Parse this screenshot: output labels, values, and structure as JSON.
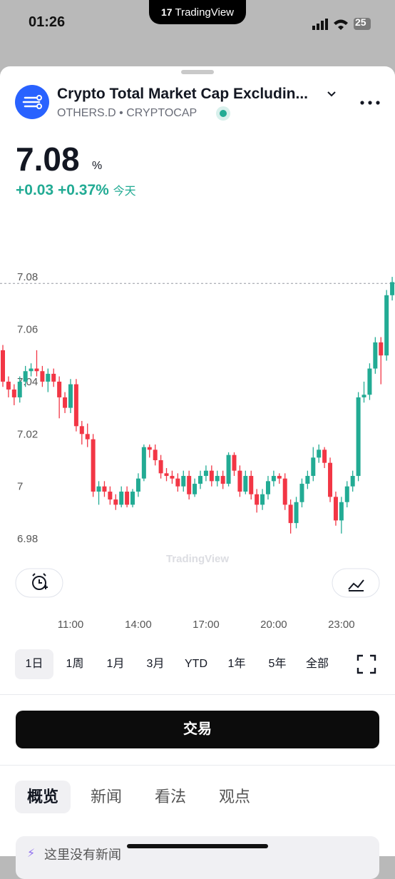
{
  "status_bar": {
    "time": "01:26",
    "battery": "25"
  },
  "app_badge": "TradingView",
  "symbol": {
    "name": "Crypto Total Market Cap Excludin...",
    "ticker": "OTHERS.D",
    "separator": "•",
    "exchange": "CRYPTOCAP"
  },
  "quote": {
    "price": "7.08",
    "unit": "%",
    "change": "+0.03",
    "change_percent": "+0.37%",
    "period": "今天"
  },
  "chart_data": {
    "type": "candlestick",
    "open": [
      7.052,
      7.04,
      7.037,
      7.034,
      7.04,
      7.044,
      7.045,
      7.044,
      7.04,
      7.043,
      7.04,
      7.034,
      7.03,
      7.039,
      7.023,
      7.02,
      7.018,
      6.998,
      7.0,
      6.998,
      6.995,
      6.993,
      6.998,
      6.993,
      6.998,
      7.003,
      7.015,
      7.014,
      7.01,
      7.005,
      7.004,
      7.003,
      7.0,
      7.004,
      6.997,
      7.001,
      7.004,
      7.006,
      7.002,
      7.004,
      7.001,
      7.012,
      7.006,
      6.998,
      7.004,
      6.997,
      6.993,
      6.997,
      7.002,
      7.004,
      7.003,
      6.993,
      6.986,
      6.994,
      7.001,
      7.004,
      7.011,
      7.014,
      7.009,
      6.996,
      6.987,
      6.994,
      7.0,
      7.004,
      7.034,
      7.035,
      7.045,
      7.055,
      7.05,
      7.073
    ],
    "high": [
      7.054,
      7.042,
      7.039,
      7.042,
      7.046,
      7.047,
      7.052,
      7.046,
      7.045,
      7.045,
      7.042,
      7.036,
      7.041,
      7.041,
      7.025,
      7.024,
      7.02,
      7.002,
      7.002,
      7.0,
      6.997,
      7.0,
      7.0,
      6.999,
      7.005,
      7.016,
      7.016,
      7.016,
      7.012,
      7.007,
      7.006,
      7.005,
      7.006,
      7.006,
      7.003,
      7.006,
      7.008,
      7.008,
      7.006,
      7.006,
      7.013,
      7.013,
      7.008,
      7.006,
      7.006,
      6.999,
      6.999,
      7.004,
      7.006,
      7.005,
      7.005,
      6.995,
      6.996,
      7.003,
      7.006,
      7.015,
      7.016,
      7.015,
      7.011,
      6.998,
      6.996,
      7.002,
      7.006,
      7.036,
      7.04,
      7.047,
      7.057,
      7.057,
      7.075,
      7.08
    ],
    "low": [
      7.038,
      7.034,
      7.031,
      7.032,
      7.038,
      7.042,
      7.042,
      7.038,
      7.036,
      7.038,
      7.026,
      7.028,
      7.028,
      7.021,
      7.016,
      7.015,
      6.996,
      6.993,
      6.996,
      6.993,
      6.991,
      6.992,
      6.992,
      6.992,
      6.996,
      7.002,
      7.011,
      7.008,
      7.003,
      7.002,
      7.001,
      6.998,
      6.998,
      6.995,
      6.996,
      6.999,
      7.002,
      7.0,
      7.0,
      6.999,
      7.0,
      7.004,
      6.996,
      6.997,
      6.995,
      6.99,
      6.991,
      6.995,
      7.0,
      7.001,
      6.991,
      6.982,
      6.984,
      6.992,
      6.999,
      7.002,
      7.009,
      7.007,
      6.994,
      6.985,
      6.982,
      6.992,
      6.998,
      7.002,
      7.032,
      7.033,
      7.043,
      7.039,
      7.048,
      7.071
    ],
    "close": [
      7.04,
      7.037,
      7.034,
      7.04,
      7.044,
      7.045,
      7.044,
      7.04,
      7.043,
      7.04,
      7.034,
      7.03,
      7.039,
      7.023,
      7.02,
      7.018,
      6.998,
      7.0,
      6.998,
      6.995,
      6.993,
      6.998,
      6.993,
      6.998,
      7.003,
      7.015,
      7.014,
      7.01,
      7.005,
      7.004,
      7.003,
      7.0,
      7.004,
      6.997,
      7.001,
      7.004,
      7.006,
      7.002,
      7.004,
      7.001,
      7.012,
      7.006,
      6.998,
      7.004,
      6.997,
      6.993,
      6.997,
      7.002,
      7.004,
      7.003,
      6.993,
      6.986,
      6.994,
      7.001,
      7.004,
      7.011,
      7.014,
      7.009,
      6.996,
      6.987,
      6.994,
      7.0,
      7.004,
      7.034,
      7.035,
      7.045,
      7.055,
      7.05,
      7.073,
      7.078
    ],
    "up_color": "#22ab94",
    "down_color": "#f23645",
    "last_price": 7.0775,
    "ylim": [
      6.9705,
      7.104
    ],
    "yticks": [
      7.08,
      7.06,
      7.04,
      7.02,
      7,
      6.98
    ],
    "xlim": [
      0,
      70
    ],
    "xticks": [
      {
        "value": 12,
        "label": "11:00"
      },
      {
        "value": 24,
        "label": "14:00"
      },
      {
        "value": 36,
        "label": "17:00"
      },
      {
        "value": 48,
        "label": "20:00"
      },
      {
        "value": 60,
        "label": "23:00"
      }
    ],
    "watermark": "TradingView"
  },
  "timeframes": [
    "1日",
    "1周",
    "1月",
    "3月",
    "YTD",
    "1年",
    "5年",
    "全部"
  ],
  "trade_button": "交易",
  "tabs": [
    "概览",
    "新闻",
    "看法",
    "观点"
  ],
  "news_notice": "这里没有新闻"
}
